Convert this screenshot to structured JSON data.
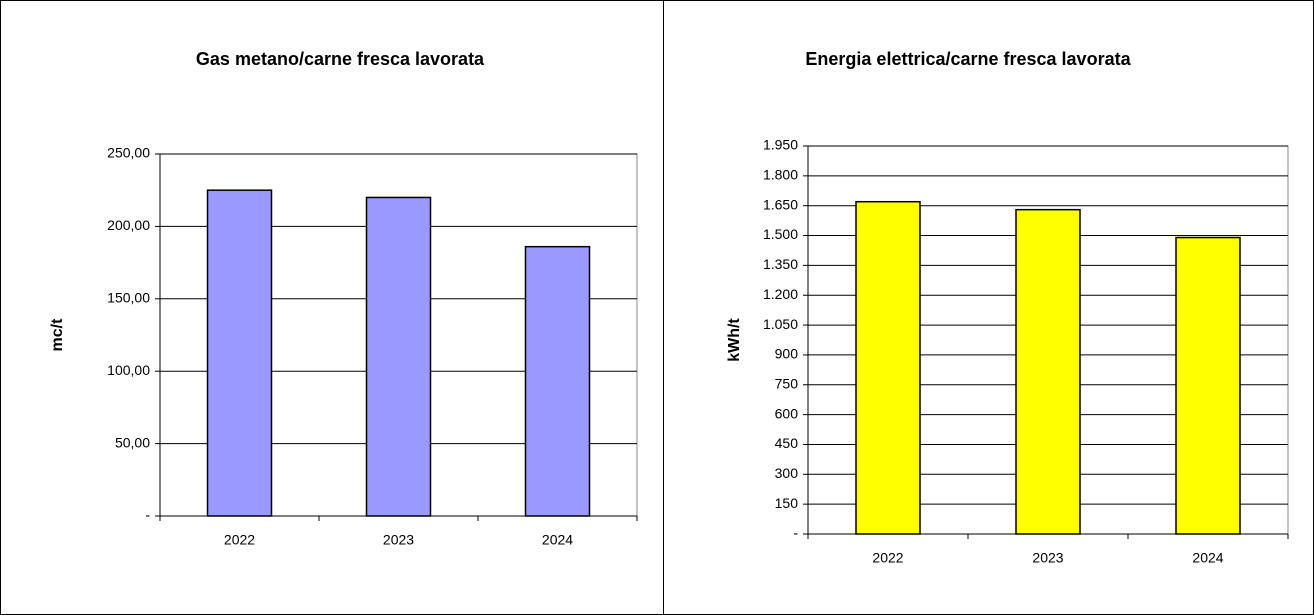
{
  "chart_data": [
    {
      "type": "bar",
      "title": "Gas metano/carne fresca lavorata",
      "y_label": "mc/t",
      "categories": [
        "2022",
        "2023",
        "2024"
      ],
      "values": [
        225,
        220,
        186
      ],
      "color": "#9999ff",
      "ylim": [
        0,
        250
      ],
      "yticks": [
        {
          "value": 0,
          "label": "-"
        },
        {
          "value": 50,
          "label": "50,00"
        },
        {
          "value": 100,
          "label": "100,00"
        },
        {
          "value": 150,
          "label": "150,00"
        },
        {
          "value": 200,
          "label": "200,00"
        },
        {
          "value": 250,
          "label": "250,00"
        }
      ],
      "grid": true
    },
    {
      "type": "bar",
      "title": "Energia elettrica/carne fresca lavorata",
      "y_label": "kWh/t",
      "categories": [
        "2022",
        "2023",
        "2024"
      ],
      "values": [
        1670,
        1630,
        1490
      ],
      "color": "#ffff00",
      "ylim": [
        0,
        1950
      ],
      "yticks": [
        {
          "value": 0,
          "label": "-"
        },
        150,
        300,
        450,
        600,
        750,
        900,
        {
          "value": 1050,
          "label": "1.050"
        },
        {
          "value": 1200,
          "label": "1.200"
        },
        {
          "value": 1350,
          "label": "1.350"
        },
        {
          "value": 1500,
          "label": "1.500"
        },
        {
          "value": 1650,
          "label": "1.650"
        },
        {
          "value": 1800,
          "label": "1.800"
        },
        {
          "value": 1950,
          "label": "1.950"
        }
      ],
      "grid": true
    }
  ]
}
